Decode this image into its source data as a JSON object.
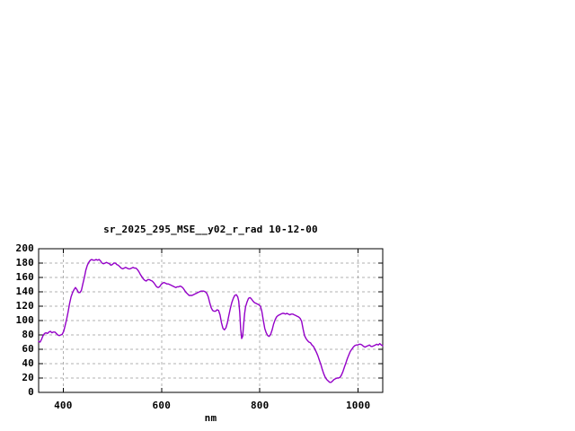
{
  "page": {
    "background": "#ffffff"
  },
  "chart_data": {
    "type": "line",
    "title": "sr_2025_295_MSE__y02_r_rad 10-12-00",
    "xlabel": "nm",
    "ylabel": "",
    "xlim": [
      350,
      1050
    ],
    "ylim": [
      0,
      200
    ],
    "xticks": [
      400,
      600,
      800,
      1000
    ],
    "yticks": [
      0,
      20,
      40,
      60,
      80,
      100,
      120,
      140,
      160,
      180,
      200
    ],
    "grid": true,
    "legend": "none",
    "line_color": "#9400c8",
    "grid_color": "#b0b0b0",
    "axis_color": "#000000",
    "series": [
      {
        "name": "sr_2025_295_MSE__y02_r_rad",
        "points": [
          [
            350,
            71
          ],
          [
            353,
            70
          ],
          [
            356,
            74
          ],
          [
            359,
            79
          ],
          [
            362,
            82
          ],
          [
            365,
            83
          ],
          [
            368,
            82
          ],
          [
            371,
            84
          ],
          [
            374,
            85
          ],
          [
            377,
            83
          ],
          [
            380,
            84
          ],
          [
            383,
            84
          ],
          [
            386,
            82
          ],
          [
            389,
            80
          ],
          [
            392,
            79
          ],
          [
            395,
            80
          ],
          [
            398,
            81
          ],
          [
            401,
            85
          ],
          [
            404,
            93
          ],
          [
            407,
            102
          ],
          [
            410,
            112
          ],
          [
            413,
            124
          ],
          [
            416,
            133
          ],
          [
            419,
            139
          ],
          [
            422,
            143
          ],
          [
            425,
            146
          ],
          [
            428,
            143
          ],
          [
            431,
            139
          ],
          [
            434,
            139
          ],
          [
            437,
            142
          ],
          [
            440,
            151
          ],
          [
            443,
            160
          ],
          [
            446,
            170
          ],
          [
            449,
            177
          ],
          [
            452,
            181
          ],
          [
            455,
            184
          ],
          [
            458,
            185
          ],
          [
            461,
            184
          ],
          [
            464,
            184
          ],
          [
            467,
            185
          ],
          [
            470,
            184
          ],
          [
            473,
            185
          ],
          [
            476,
            183
          ],
          [
            479,
            180
          ],
          [
            482,
            179
          ],
          [
            485,
            180
          ],
          [
            488,
            181
          ],
          [
            491,
            180
          ],
          [
            494,
            179
          ],
          [
            497,
            177
          ],
          [
            500,
            178
          ],
          [
            503,
            180
          ],
          [
            506,
            180
          ],
          [
            509,
            178
          ],
          [
            512,
            177
          ],
          [
            515,
            175
          ],
          [
            518,
            173
          ],
          [
            521,
            172
          ],
          [
            524,
            173
          ],
          [
            527,
            174
          ],
          [
            530,
            173
          ],
          [
            533,
            172
          ],
          [
            536,
            172
          ],
          [
            539,
            173
          ],
          [
            542,
            174
          ],
          [
            545,
            173
          ],
          [
            548,
            173
          ],
          [
            551,
            171
          ],
          [
            554,
            168
          ],
          [
            557,
            164
          ],
          [
            560,
            161
          ],
          [
            563,
            158
          ],
          [
            566,
            156
          ],
          [
            569,
            155
          ],
          [
            572,
            157
          ],
          [
            575,
            157
          ],
          [
            578,
            156
          ],
          [
            581,
            155
          ],
          [
            584,
            153
          ],
          [
            587,
            150
          ],
          [
            590,
            147
          ],
          [
            593,
            146
          ],
          [
            596,
            147
          ],
          [
            599,
            150
          ],
          [
            602,
            152
          ],
          [
            605,
            153
          ],
          [
            608,
            152
          ],
          [
            611,
            151
          ],
          [
            614,
            151
          ],
          [
            617,
            150
          ],
          [
            620,
            149
          ],
          [
            623,
            148
          ],
          [
            626,
            147
          ],
          [
            629,
            146
          ],
          [
            632,
            147
          ],
          [
            635,
            147
          ],
          [
            638,
            148
          ],
          [
            641,
            147
          ],
          [
            644,
            145
          ],
          [
            647,
            142
          ],
          [
            650,
            139
          ],
          [
            653,
            137
          ],
          [
            656,
            135
          ],
          [
            659,
            135
          ],
          [
            662,
            135
          ],
          [
            665,
            136
          ],
          [
            668,
            137
          ],
          [
            671,
            138
          ],
          [
            674,
            139
          ],
          [
            677,
            140
          ],
          [
            680,
            141
          ],
          [
            683,
            141
          ],
          [
            686,
            141
          ],
          [
            689,
            140
          ],
          [
            692,
            138
          ],
          [
            695,
            133
          ],
          [
            698,
            125
          ],
          [
            701,
            118
          ],
          [
            704,
            114
          ],
          [
            707,
            113
          ],
          [
            710,
            113
          ],
          [
            713,
            115
          ],
          [
            716,
            114
          ],
          [
            719,
            108
          ],
          [
            722,
            97
          ],
          [
            725,
            89
          ],
          [
            728,
            87
          ],
          [
            731,
            90
          ],
          [
            734,
            97
          ],
          [
            737,
            107
          ],
          [
            740,
            117
          ],
          [
            743,
            125
          ],
          [
            746,
            131
          ],
          [
            749,
            135
          ],
          [
            752,
            136
          ],
          [
            755,
            133
          ],
          [
            757,
            127
          ],
          [
            759,
            112
          ],
          [
            761,
            88
          ],
          [
            763,
            75
          ],
          [
            765,
            78
          ],
          [
            767,
            95
          ],
          [
            769,
            110
          ],
          [
            771,
            119
          ],
          [
            774,
            126
          ],
          [
            777,
            131
          ],
          [
            780,
            132
          ],
          [
            783,
            130
          ],
          [
            786,
            127
          ],
          [
            789,
            125
          ],
          [
            792,
            124
          ],
          [
            795,
            123
          ],
          [
            798,
            122
          ],
          [
            801,
            120
          ],
          [
            804,
            113
          ],
          [
            807,
            101
          ],
          [
            810,
            89
          ],
          [
            813,
            83
          ],
          [
            816,
            79
          ],
          [
            819,
            78
          ],
          [
            822,
            81
          ],
          [
            825,
            87
          ],
          [
            828,
            95
          ],
          [
            831,
            101
          ],
          [
            834,
            105
          ],
          [
            837,
            107
          ],
          [
            840,
            108
          ],
          [
            843,
            109
          ],
          [
            846,
            110
          ],
          [
            849,
            110
          ],
          [
            852,
            109
          ],
          [
            855,
            110
          ],
          [
            858,
            109
          ],
          [
            861,
            108
          ],
          [
            864,
            109
          ],
          [
            867,
            109
          ],
          [
            870,
            108
          ],
          [
            873,
            107
          ],
          [
            876,
            106
          ],
          [
            879,
            105
          ],
          [
            882,
            103
          ],
          [
            885,
            99
          ],
          [
            888,
            88
          ],
          [
            891,
            79
          ],
          [
            894,
            75
          ],
          [
            897,
            72
          ],
          [
            900,
            70
          ],
          [
            903,
            69
          ],
          [
            906,
            66
          ],
          [
            909,
            64
          ],
          [
            912,
            60
          ],
          [
            915,
            56
          ],
          [
            918,
            51
          ],
          [
            921,
            45
          ],
          [
            924,
            39
          ],
          [
            927,
            32
          ],
          [
            930,
            26
          ],
          [
            933,
            21
          ],
          [
            936,
            18
          ],
          [
            939,
            16
          ],
          [
            942,
            14
          ],
          [
            945,
            14
          ],
          [
            948,
            16
          ],
          [
            951,
            18
          ],
          [
            954,
            19
          ],
          [
            957,
            20
          ],
          [
            960,
            20
          ],
          [
            963,
            21
          ],
          [
            966,
            24
          ],
          [
            969,
            29
          ],
          [
            972,
            35
          ],
          [
            975,
            41
          ],
          [
            978,
            47
          ],
          [
            981,
            52
          ],
          [
            984,
            57
          ],
          [
            987,
            60
          ],
          [
            990,
            63
          ],
          [
            993,
            65
          ],
          [
            996,
            66
          ],
          [
            999,
            66
          ],
          [
            1002,
            67
          ],
          [
            1005,
            67
          ],
          [
            1008,
            66
          ],
          [
            1011,
            64
          ],
          [
            1014,
            63
          ],
          [
            1017,
            64
          ],
          [
            1020,
            65
          ],
          [
            1023,
            66
          ],
          [
            1026,
            64
          ],
          [
            1029,
            64
          ],
          [
            1032,
            65
          ],
          [
            1035,
            66
          ],
          [
            1038,
            67
          ],
          [
            1041,
            66
          ],
          [
            1044,
            68
          ],
          [
            1047,
            66
          ],
          [
            1050,
            65
          ]
        ]
      }
    ]
  }
}
